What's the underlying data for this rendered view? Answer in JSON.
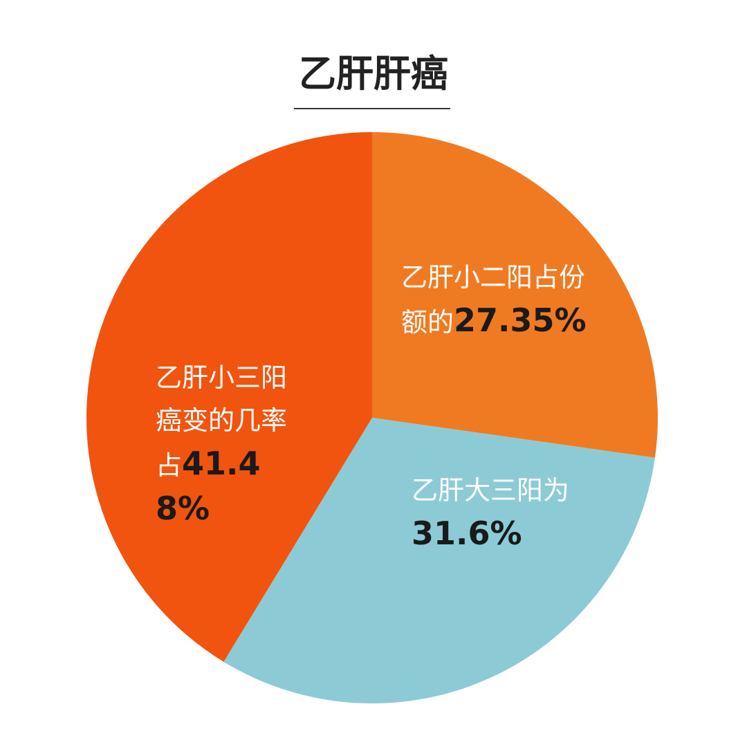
{
  "chart_data": {
    "type": "pie",
    "title": "乙肝肝癌",
    "categories": [
      "乙肝小二阳占份额的",
      "乙肝大三阳为",
      "乙肝小三阳癌变的几率占"
    ],
    "values": [
      27.35,
      31.6,
      41.48
    ],
    "value_labels": [
      "27.35%",
      "31.6%",
      "41.48%"
    ],
    "colors": [
      "#f07a22",
      "#8ccbd6",
      "#f0540f"
    ]
  }
}
